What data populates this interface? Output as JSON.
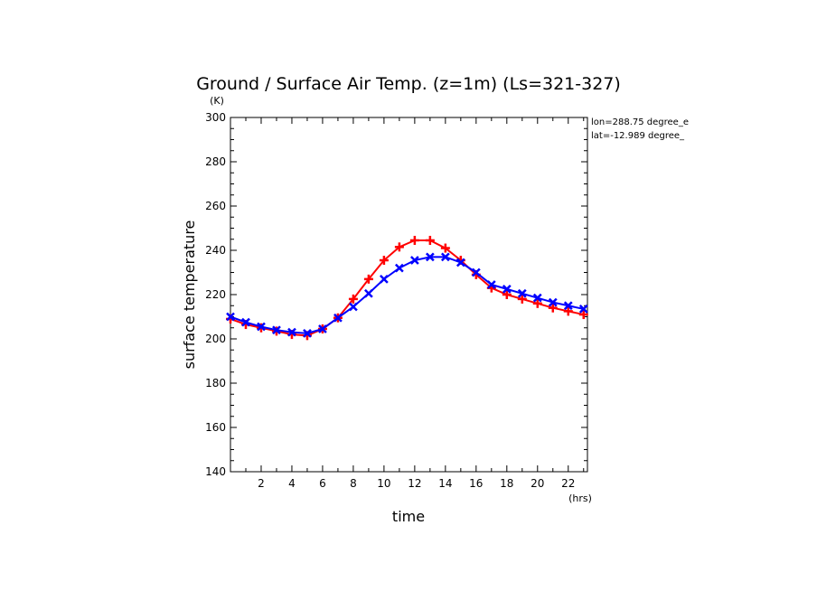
{
  "chart_data": {
    "type": "line",
    "title": "Ground / Surface Air Temp. (z=1m) (Ls=321-327)",
    "ylabel": "surface temperature",
    "yunit": "(K)",
    "xlabel": "time",
    "xunit": "(hrs)",
    "annotations": [
      "lon=288.75 degree_e",
      "lat=-12.989 degree_"
    ],
    "xlim": [
      0,
      23.25
    ],
    "ylim": [
      140,
      300
    ],
    "xticks": [
      2,
      4,
      6,
      8,
      10,
      12,
      14,
      16,
      18,
      20,
      22
    ],
    "yticks": [
      140,
      160,
      180,
      200,
      220,
      240,
      260,
      280,
      300
    ],
    "grid": false,
    "x": [
      0,
      1,
      2,
      3,
      4,
      5,
      6,
      7,
      8,
      9,
      10,
      11,
      12,
      13,
      14,
      15,
      16,
      17,
      18,
      19,
      20,
      21,
      22,
      23
    ],
    "series": [
      {
        "color": "#ff0000",
        "marker": "plus",
        "values": [
          209,
          206.5,
          205,
          203.5,
          202,
          201.5,
          204.5,
          209.5,
          218,
          227,
          235.5,
          241.5,
          244.5,
          244.5,
          241,
          235.5,
          229,
          223,
          220,
          218,
          216,
          214,
          212.5,
          211
        ]
      },
      {
        "color": "#0000ff",
        "marker": "x",
        "values": [
          210,
          207.5,
          205.5,
          204,
          203,
          202.5,
          204.5,
          209.5,
          214.5,
          220.5,
          227,
          232,
          235.5,
          237,
          237,
          234.5,
          230,
          224.5,
          222.5,
          220.5,
          218.5,
          216.5,
          215,
          213.5
        ]
      }
    ]
  }
}
